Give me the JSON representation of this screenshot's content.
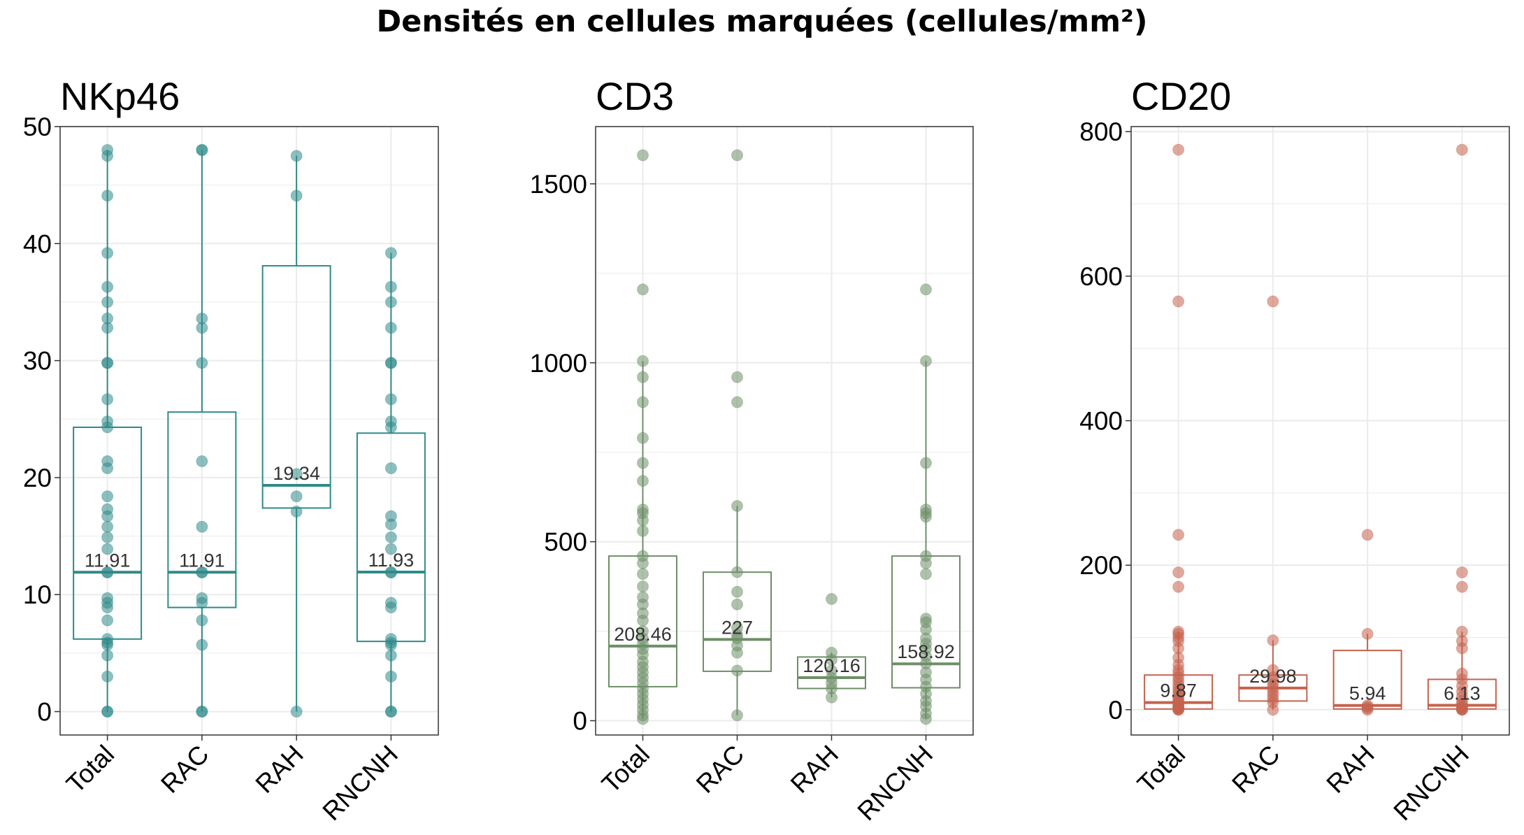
{
  "title": "Densités en cellules marquées (cellules/mm²)",
  "chart_data": [
    {
      "type": "box",
      "title": "NKp46",
      "color": "#2f8a8a",
      "ylim": [
        -2,
        50
      ],
      "yticks": [
        0,
        10,
        20,
        30,
        40,
        50
      ],
      "categories": [
        "Total",
        "RAC",
        "RAH",
        "RNCNH"
      ],
      "boxes": [
        {
          "category": "Total",
          "q1": 6.2,
          "median": 11.91,
          "q3": 24.3,
          "whisker_low": 0,
          "whisker_high": 48,
          "median_label": "11.91",
          "points": [
            0,
            0,
            3,
            4.8,
            5.7,
            5.9,
            6.2,
            7.8,
            8.9,
            9.3,
            9.7,
            11.9,
            11.9,
            13.9,
            14.9,
            15.8,
            16.7,
            17.3,
            18.4,
            20.8,
            21.4,
            24.3,
            24.8,
            26.7,
            29.8,
            29.8,
            32.8,
            33.6,
            35,
            36.3,
            39.2,
            44.1,
            47.5,
            48
          ]
        },
        {
          "category": "RAC",
          "q1": 8.9,
          "median": 11.91,
          "q3": 25.6,
          "whisker_low": 0,
          "whisker_high": 48,
          "median_label": "11.91",
          "points": [
            0,
            0,
            5.7,
            7.8,
            9.3,
            9.7,
            11.9,
            11.9,
            15.8,
            21.4,
            29.8,
            32.8,
            33.6,
            48,
            48
          ]
        },
        {
          "category": "RAH",
          "q1": 17.4,
          "median": 19.34,
          "q3": 38.1,
          "whisker_low": 0,
          "whisker_high": 47.5,
          "median_label": "19.34",
          "points": [
            0,
            17.1,
            18.4,
            20.3,
            44.1,
            47.5
          ]
        },
        {
          "category": "RNCNH",
          "q1": 6.0,
          "median": 11.93,
          "q3": 23.8,
          "whisker_low": 0,
          "whisker_high": 39.2,
          "median_label": "11.93",
          "points": [
            0,
            0,
            3,
            4.8,
            5.7,
            5.9,
            6.2,
            8.9,
            9.3,
            11.9,
            11.9,
            13.9,
            14.9,
            16,
            16.7,
            20.8,
            24.3,
            24.8,
            26.7,
            29.8,
            29.8,
            32.8,
            35,
            36.3,
            39.2
          ]
        }
      ]
    },
    {
      "type": "box",
      "title": "CD3",
      "color": "#6e8f68",
      "ylim": [
        -40,
        1660
      ],
      "yticks": [
        0,
        500,
        1000,
        1500
      ],
      "categories": [
        "Total",
        "RAC",
        "RAH",
        "RNCNH"
      ],
      "boxes": [
        {
          "category": "Total",
          "q1": 95,
          "median": 208.46,
          "q3": 460,
          "whisker_low": 5,
          "whisker_high": 1005,
          "median_label": "208.46",
          "points": [
            5,
            15,
            30,
            45,
            60,
            75,
            90,
            105,
            120,
            135,
            150,
            165,
            185,
            200,
            215,
            230,
            250,
            280,
            300,
            325,
            345,
            375,
            410,
            440,
            460,
            530,
            560,
            580,
            590,
            670,
            720,
            790,
            890,
            960,
            1005,
            1205,
            1580
          ]
        },
        {
          "category": "RAC",
          "q1": 138,
          "median": 227,
          "q3": 415,
          "whisker_low": 15,
          "whisker_high": 600,
          "median_label": "227",
          "points": [
            15,
            140,
            190,
            210,
            230,
            240,
            260,
            325,
            360,
            415,
            600,
            890,
            960,
            1580
          ]
        },
        {
          "category": "RAH",
          "q1": 90,
          "median": 120.16,
          "q3": 178,
          "whisker_low": 65,
          "whisker_high": 190,
          "median_label": "120.16",
          "points": [
            65,
            90,
            105,
            120,
            140,
            170,
            190,
            340
          ]
        },
        {
          "category": "RNCNH",
          "q1": 92,
          "median": 158.92,
          "q3": 460,
          "whisker_low": 5,
          "whisker_high": 1005,
          "median_label": "158.92",
          "points": [
            5,
            20,
            40,
            55,
            75,
            95,
            115,
            135,
            160,
            180,
            200,
            215,
            230,
            255,
            275,
            285,
            410,
            440,
            460,
            570,
            580,
            590,
            720,
            1005,
            1205
          ]
        }
      ]
    },
    {
      "type": "box",
      "title": "CD20",
      "color": "#c5634e",
      "ylim": [
        -35,
        807
      ],
      "yticks": [
        0,
        200,
        400,
        600,
        800
      ],
      "categories": [
        "Total",
        "RAC",
        "RAH",
        "RNCNH"
      ],
      "boxes": [
        {
          "category": "Total",
          "q1": 1,
          "median": 9.87,
          "q3": 48,
          "whisker_low": 0,
          "whisker_high": 108,
          "median_label": "9.87",
          "points": [
            0,
            0,
            1,
            2,
            3,
            4,
            5,
            6,
            8,
            10,
            12,
            15,
            18,
            22,
            26,
            30,
            35,
            40,
            45,
            50,
            55,
            62,
            72,
            85,
            95,
            100,
            105,
            108,
            170,
            190,
            242,
            565,
            775
          ]
        },
        {
          "category": "RAC",
          "q1": 12,
          "median": 29.98,
          "q3": 48,
          "whisker_low": 0,
          "whisker_high": 96,
          "median_label": "29.98",
          "points": [
            0,
            10,
            15,
            20,
            25,
            30,
            35,
            40,
            45,
            55,
            96,
            565
          ]
        },
        {
          "category": "RAH",
          "q1": 1,
          "median": 5.94,
          "q3": 82,
          "whisker_low": 0,
          "whisker_high": 105,
          "median_label": "5.94",
          "points": [
            0,
            2,
            4,
            6,
            105,
            242
          ]
        },
        {
          "category": "RNCNH",
          "q1": 1,
          "median": 6.13,
          "q3": 42,
          "whisker_low": 0,
          "whisker_high": 108,
          "median_label": "6.13",
          "points": [
            0,
            0,
            1,
            2,
            3,
            5,
            8,
            12,
            18,
            25,
            33,
            42,
            50,
            85,
            95,
            108,
            170,
            190,
            775
          ]
        }
      ]
    }
  ]
}
